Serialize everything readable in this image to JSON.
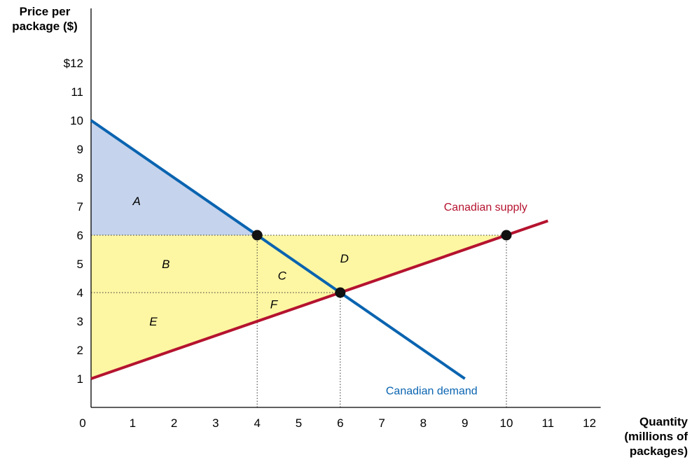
{
  "chart_data": {
    "type": "line",
    "ylabel_lines": [
      "Price per",
      "package ($)"
    ],
    "xlabel_lines": [
      "Quantity",
      "(millions of",
      "packages)"
    ],
    "xlim": [
      0,
      12
    ],
    "ylim": [
      0,
      12
    ],
    "x_ticks": [
      "0",
      "1",
      "2",
      "3",
      "4",
      "5",
      "6",
      "7",
      "8",
      "9",
      "10",
      "11",
      "12"
    ],
    "y_ticks": [
      "1",
      "2",
      "3",
      "4",
      "5",
      "6",
      "7",
      "8",
      "9",
      "10",
      "11",
      "$12"
    ],
    "grid": false,
    "series": [
      {
        "name": "Canadian demand",
        "color": "#0a64b0",
        "x": [
          0,
          9
        ],
        "y": [
          10,
          1
        ]
      },
      {
        "name": "Canadian supply",
        "color": "#b5132f",
        "x": [
          0,
          11
        ],
        "y": [
          1,
          6.5
        ]
      }
    ],
    "points": [
      {
        "x": 4,
        "y": 6
      },
      {
        "x": 6,
        "y": 4
      },
      {
        "x": 10,
        "y": 6
      }
    ],
    "reference_lines": [
      {
        "from": [
          0,
          6
        ],
        "to": [
          10,
          6
        ]
      },
      {
        "from": [
          0,
          4
        ],
        "to": [
          6,
          4
        ]
      },
      {
        "from": [
          4,
          0
        ],
        "to": [
          4,
          6
        ]
      },
      {
        "from": [
          6,
          0
        ],
        "to": [
          6,
          4
        ]
      },
      {
        "from": [
          10,
          0
        ],
        "to": [
          10,
          6
        ]
      }
    ],
    "regions": [
      {
        "label": "A",
        "color": "#c5d3ec",
        "polygon": [
          [
            0,
            10
          ],
          [
            4,
            6
          ],
          [
            0,
            6
          ]
        ],
        "label_at": [
          1.1,
          7.2
        ]
      },
      {
        "label": "",
        "color": "#fdf6a3",
        "polygon": [
          [
            0,
            6
          ],
          [
            10,
            6
          ],
          [
            0,
            1
          ]
        ]
      },
      {
        "label": "B",
        "color": null,
        "label_at": [
          1.8,
          5.0
        ]
      },
      {
        "label": "C",
        "color": null,
        "label_at": [
          4.6,
          4.6
        ]
      },
      {
        "label": "D",
        "color": null,
        "label_at": [
          6.1,
          5.2
        ]
      },
      {
        "label": "E",
        "color": null,
        "label_at": [
          1.5,
          3.0
        ]
      },
      {
        "label": "F",
        "color": null,
        "label_at": [
          4.4,
          3.6
        ]
      }
    ],
    "series_labels": [
      {
        "text": "Canadian supply",
        "color": "#b5132f",
        "at": [
          9.5,
          7.0
        ]
      },
      {
        "text": "Canadian demand",
        "color": "#0a64b0",
        "at": [
          8.2,
          0.6
        ]
      }
    ]
  }
}
